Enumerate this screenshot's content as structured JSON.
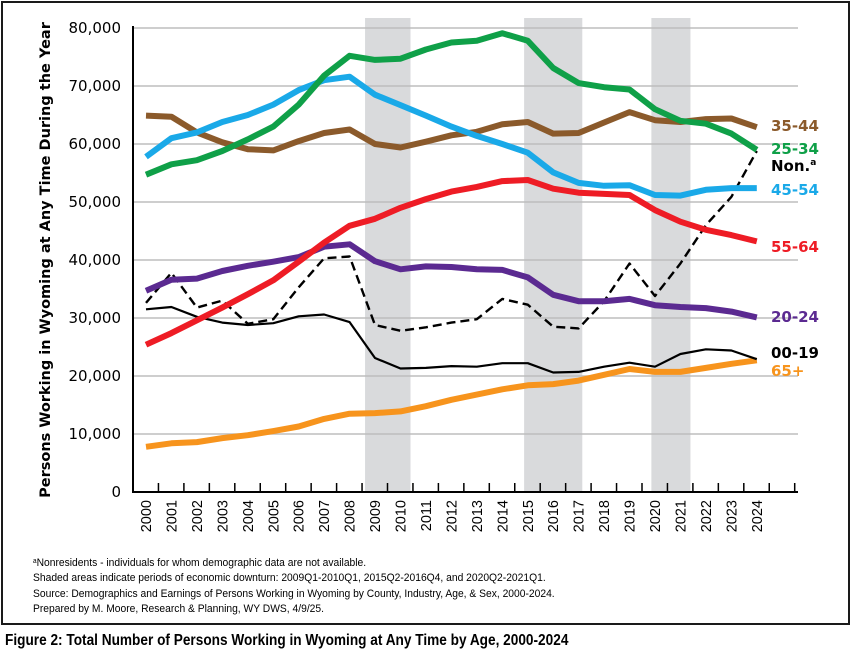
{
  "chart_data": {
    "type": "line",
    "title": "",
    "xlabel": "",
    "ylabel": "Persons Working in Wyoming at Any Time During the Year",
    "ylim": [
      0,
      80000
    ],
    "yticks": [
      0,
      10000,
      20000,
      30000,
      40000,
      50000,
      60000,
      70000,
      80000
    ],
    "ytick_labels": [
      "0",
      "10,000",
      "20,000",
      "30,000",
      "40,000",
      "50,000",
      "60,000",
      "70,000",
      "80,000"
    ],
    "grid": true,
    "legend": "direct labels at right end of each line",
    "categories": [
      "2000",
      "2001",
      "2002",
      "2003",
      "2004",
      "2005",
      "2006",
      "2007",
      "2008",
      "2009",
      "2010",
      "2011",
      "2012",
      "2013",
      "2014",
      "2015",
      "2016",
      "2017",
      "2018",
      "2019",
      "2020",
      "2021",
      "2022",
      "2023",
      "2024"
    ],
    "shaded_periods": [
      {
        "label": "2009Q1-2010Q1",
        "from": 2009.0,
        "to": 2010.0
      },
      {
        "label": "2015Q2-2016Q4",
        "from": 2015.25,
        "to": 2016.75
      },
      {
        "label": "2020Q2-2021Q1",
        "from": 2020.25,
        "to": 2021.0
      }
    ],
    "series": [
      {
        "name": "35-44",
        "label": "35-44",
        "color": "#8B5A2B",
        "style": "solid-thick",
        "values": [
          64900,
          64700,
          62000,
          60300,
          59100,
          58900,
          60500,
          61900,
          62500,
          60000,
          59400,
          60400,
          61500,
          62100,
          63400,
          63800,
          61800,
          61900,
          63700,
          65500,
          64100,
          63800,
          64300,
          64400,
          62900
        ]
      },
      {
        "name": "25-34",
        "label": "25-34",
        "color": "#0FA048",
        "style": "solid-thick",
        "values": [
          54700,
          56500,
          57200,
          58800,
          60800,
          63000,
          66800,
          71800,
          75200,
          74500,
          74700,
          76300,
          77500,
          77800,
          79100,
          77800,
          73100,
          70500,
          69800,
          69400,
          66000,
          64000,
          63500,
          61800,
          59000
        ]
      },
      {
        "name": "Nonresidents",
        "label": "Non.",
        "label_superscript": "a",
        "color": "#000000",
        "style": "dashed",
        "values": [
          32600,
          37800,
          31800,
          33000,
          29000,
          29800,
          35300,
          40300,
          40600,
          28800,
          27800,
          28400,
          29200,
          29800,
          33300,
          32300,
          28500,
          28200,
          32900,
          39400,
          33800,
          39400,
          46000,
          50900,
          58800
        ]
      },
      {
        "name": "45-54",
        "label": "45-54",
        "color": "#1AA9E8",
        "style": "solid-thick",
        "values": [
          57800,
          61000,
          62000,
          63800,
          65000,
          66800,
          69300,
          71000,
          71600,
          68500,
          66700,
          64900,
          63000,
          61400,
          60000,
          58500,
          55100,
          53300,
          52800,
          52900,
          51200,
          51100,
          52100,
          52400,
          52400
        ]
      },
      {
        "name": "55-64",
        "label": "55-64",
        "color": "#EE1C25",
        "style": "solid-thick",
        "values": [
          25400,
          27400,
          29600,
          31800,
          34100,
          36500,
          39700,
          43000,
          45900,
          47100,
          49000,
          50500,
          51800,
          52600,
          53600,
          53800,
          52300,
          51600,
          51400,
          51200,
          48600,
          46600,
          45200,
          44300,
          43200
        ]
      },
      {
        "name": "20-24",
        "label": "20-24",
        "color": "#5B2A91",
        "style": "solid-thick",
        "values": [
          34700,
          36600,
          36800,
          38100,
          39000,
          39700,
          40500,
          42300,
          42700,
          39800,
          38400,
          38900,
          38800,
          38400,
          38300,
          37000,
          34000,
          32900,
          32900,
          33300,
          32200,
          31900,
          31700,
          31100,
          30100
        ]
      },
      {
        "name": "00-19",
        "label": "00-19",
        "color": "#000000",
        "style": "solid-thin",
        "values": [
          31500,
          31900,
          30200,
          29200,
          28800,
          29100,
          30300,
          30600,
          29300,
          23100,
          21300,
          21400,
          21700,
          21600,
          22200,
          22200,
          20600,
          20700,
          21600,
          22300,
          21600,
          23800,
          24600,
          24400,
          22900
        ]
      },
      {
        "name": "65+",
        "label": "65+",
        "color": "#F7941D",
        "style": "solid-thick",
        "values": [
          7800,
          8400,
          8600,
          9300,
          9800,
          10500,
          11300,
          12600,
          13500,
          13600,
          13900,
          14800,
          15900,
          16800,
          17700,
          18400,
          18600,
          19200,
          20200,
          21200,
          20700,
          20700,
          21400,
          22100,
          22700
        ]
      }
    ]
  },
  "notes": {
    "footnote_marker": "a",
    "footnote": "Nonresidents - individuals for whom demographic data are not available.",
    "shaded": "Shaded areas indicate periods of economic downturn: 2009Q1-2010Q1, 2015Q2-2016Q4, and 2020Q2-2021Q1.",
    "source": "Source: Demographics and Earnings of Persons Working in Wyoming by County, Industry, Age, & Sex, 2000-2024.",
    "prepared": "Prepared by M. Moore, Research & Planning, WY DWS, 4/9/25."
  },
  "caption": "Figure 2: Total Number of Persons Working in Wyoming at Any Time by Age, 2000-2024"
}
